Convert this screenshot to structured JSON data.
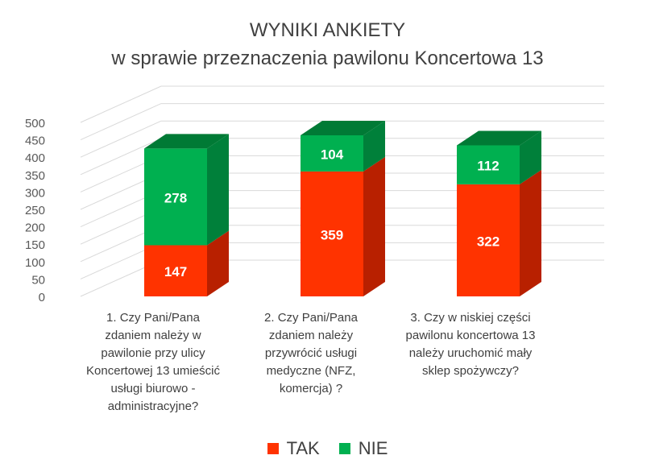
{
  "chart_data": {
    "type": "bar",
    "stacked": true,
    "three_d": true,
    "title": "WYNIKI ANKIETY",
    "subtitle": "w sprawie przeznaczenia  pawilonu Koncertowa 13",
    "categories": [
      "1. Czy Pani/Pana\nzdaniem należy w\npawilonie przy ulicy\nKoncertowej 13 umieścić\nusługi biurowo -\nadministracyjne?",
      "2. Czy Pani/Pana\nzdaniem należy\nprzywrócić usługi\nmedyczne (NFZ,\nkomercja) ?",
      "3. Czy w niskiej części\npawilonu koncertowa 13\nnależy uruchomić mały\nsklep spożywczy?"
    ],
    "series": [
      {
        "name": "TAK",
        "values": [
          147,
          359,
          322
        ],
        "color": "#FF3300",
        "side_color": "#B82000",
        "top_color": "#D62800"
      },
      {
        "name": "NIE",
        "values": [
          278,
          104,
          112
        ],
        "color": "#00B050",
        "side_color": "#00803A",
        "top_color": "#007A35"
      }
    ],
    "yticks": [
      0,
      50,
      100,
      150,
      200,
      250,
      300,
      350,
      400,
      450,
      500
    ],
    "ylim": [
      0,
      500
    ],
    "grid": true,
    "data_labels": true,
    "legend_position": "bottom",
    "legend": [
      {
        "label": "TAK",
        "color": "#FF3300"
      },
      {
        "label": "NIE",
        "color": "#00B050"
      }
    ]
  }
}
